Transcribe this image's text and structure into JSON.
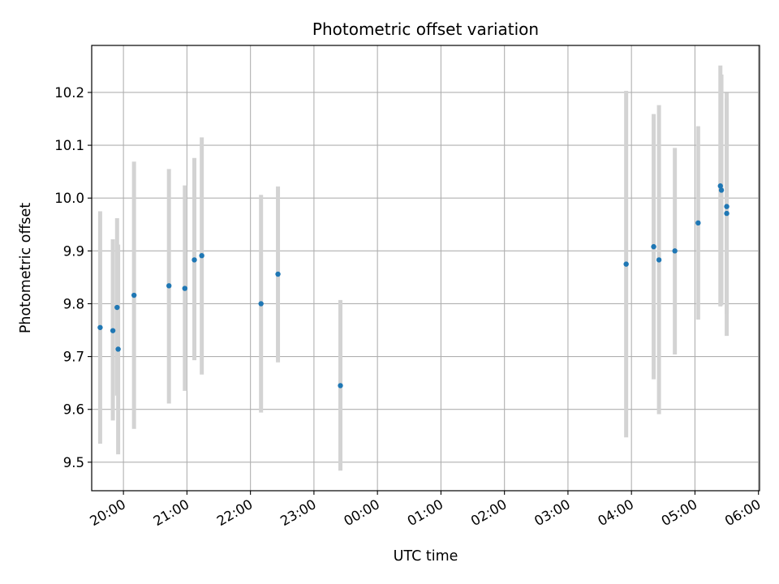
{
  "chart_data": {
    "type": "scatter",
    "title": "Photometric offset variation",
    "xlabel": "UTC time",
    "ylabel": "Photometric offset",
    "x_ticks": [
      "20:00",
      "21:00",
      "22:00",
      "23:00",
      "00:00",
      "01:00",
      "02:00",
      "03:00",
      "04:00",
      "05:00",
      "06:00"
    ],
    "y_ticks": [
      "9.5",
      "9.6",
      "9.7",
      "9.8",
      "9.9",
      "10.0",
      "10.1",
      "10.2"
    ],
    "xlim": [
      "19:30",
      "06:01"
    ],
    "ylim": [
      9.446,
      10.289
    ],
    "grid": true,
    "colors": {
      "point": "#1f77b4",
      "errorbar": "#d3d3d3",
      "grid": "#b0b0b0"
    },
    "points": [
      {
        "time": "19:38",
        "y": 9.755,
        "err_low": 9.535,
        "err_high": 9.975
      },
      {
        "time": "19:50",
        "y": 9.749,
        "err_low": 9.579,
        "err_high": 9.922
      },
      {
        "time": "19:54",
        "y": 9.793,
        "err_low": 9.626,
        "err_high": 9.962
      },
      {
        "time": "19:55",
        "y": 9.714,
        "err_low": 9.515,
        "err_high": 9.912
      },
      {
        "time": "20:10",
        "y": 9.816,
        "err_low": 9.563,
        "err_high": 10.069
      },
      {
        "time": "20:43",
        "y": 9.834,
        "err_low": 9.611,
        "err_high": 10.055
      },
      {
        "time": "20:58",
        "y": 9.829,
        "err_low": 9.635,
        "err_high": 10.024
      },
      {
        "time": "21:07",
        "y": 9.883,
        "err_low": 9.693,
        "err_high": 10.076
      },
      {
        "time": "21:14",
        "y": 9.891,
        "err_low": 9.666,
        "err_high": 10.115
      },
      {
        "time": "22:10",
        "y": 9.8,
        "err_low": 9.594,
        "err_high": 10.006
      },
      {
        "time": "22:26",
        "y": 9.856,
        "err_low": 9.689,
        "err_high": 10.022
      },
      {
        "time": "23:25",
        "y": 9.645,
        "err_low": 9.484,
        "err_high": 9.807
      },
      {
        "time": "03:55",
        "y": 9.875,
        "err_low": 9.547,
        "err_high": 10.203
      },
      {
        "time": "04:21",
        "y": 9.908,
        "err_low": 9.657,
        "err_high": 10.159
      },
      {
        "time": "04:26",
        "y": 9.883,
        "err_low": 9.591,
        "err_high": 10.176
      },
      {
        "time": "04:41",
        "y": 9.9,
        "err_low": 9.704,
        "err_high": 10.095
      },
      {
        "time": "05:03",
        "y": 9.953,
        "err_low": 9.77,
        "err_high": 10.136
      },
      {
        "time": "05:24",
        "y": 10.023,
        "err_low": 9.795,
        "err_high": 10.251
      },
      {
        "time": "05:25",
        "y": 10.015,
        "err_low": 9.797,
        "err_high": 10.234
      },
      {
        "time": "05:30",
        "y": 9.984,
        "err_low": 9.781,
        "err_high": 10.188
      },
      {
        "time": "05:30",
        "y": 9.971,
        "err_low": 9.739,
        "err_high": 10.199
      }
    ]
  }
}
